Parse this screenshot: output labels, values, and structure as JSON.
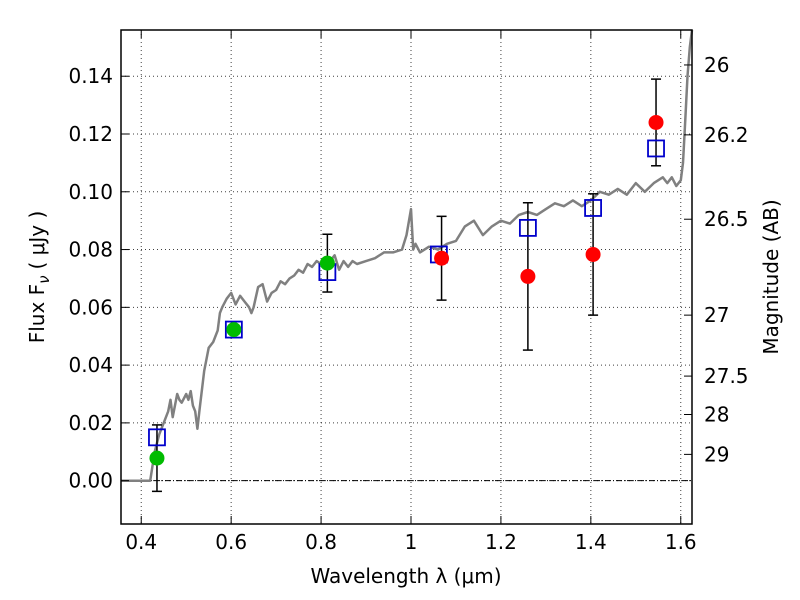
{
  "chart_data": {
    "type": "scatter",
    "xlabel": "Wavelength  λ (μm)",
    "ylabel": "Flux  F",
    "ylabel_sub": "ν",
    "ylabel_unit": "( μJy )",
    "y2label": "Magnitude (AB)",
    "xlim": [
      0.355,
      1.625
    ],
    "ylim": [
      -0.015,
      0.156
    ],
    "grid": true,
    "x_ticks": [
      {
        "value": 0.4,
        "label": "0.4"
      },
      {
        "value": 0.6,
        "label": "0.6"
      },
      {
        "value": 0.8,
        "label": "0.8"
      },
      {
        "value": 1.0,
        "label": "1"
      },
      {
        "value": 1.2,
        "label": "1.2"
      },
      {
        "value": 1.4,
        "label": "1.4"
      },
      {
        "value": 1.6,
        "label": "1.6"
      }
    ],
    "y_ticks": [
      {
        "value": 0.0,
        "label": "0.00"
      },
      {
        "value": 0.02,
        "label": "0.02"
      },
      {
        "value": 0.04,
        "label": "0.04"
      },
      {
        "value": 0.06,
        "label": "0.06"
      },
      {
        "value": 0.08,
        "label": "0.08"
      },
      {
        "value": 0.1,
        "label": "0.10"
      },
      {
        "value": 0.12,
        "label": "0.12"
      },
      {
        "value": 0.14,
        "label": "0.14"
      }
    ],
    "y2_ticks": [
      {
        "flux": 0.1439,
        "label": "26"
      },
      {
        "flux": 0.1197,
        "label": "26.2"
      },
      {
        "flux": 0.0905,
        "label": "26.5"
      },
      {
        "flux": 0.0573,
        "label": "27"
      },
      {
        "flux": 0.0362,
        "label": "27.5"
      },
      {
        "flux": 0.0229,
        "label": "28"
      },
      {
        "flux": 0.0091,
        "label": "29"
      }
    ],
    "zero_line": 0.0,
    "model_spectrum": {
      "color": "#808080",
      "x": [
        0.355,
        0.37,
        0.385,
        0.4,
        0.41,
        0.42,
        0.43,
        0.44,
        0.45,
        0.46,
        0.465,
        0.47,
        0.48,
        0.485,
        0.49,
        0.5,
        0.505,
        0.51,
        0.515,
        0.52,
        0.525,
        0.53,
        0.54,
        0.55,
        0.56,
        0.57,
        0.575,
        0.58,
        0.59,
        0.6,
        0.61,
        0.62,
        0.63,
        0.64,
        0.645,
        0.65,
        0.66,
        0.67,
        0.68,
        0.69,
        0.7,
        0.71,
        0.72,
        0.73,
        0.74,
        0.75,
        0.76,
        0.77,
        0.78,
        0.79,
        0.8,
        0.81,
        0.82,
        0.83,
        0.84,
        0.85,
        0.86,
        0.87,
        0.88,
        0.9,
        0.92,
        0.94,
        0.96,
        0.98,
        0.99,
        1.0,
        1.005,
        1.01,
        1.02,
        1.04,
        1.06,
        1.08,
        1.1,
        1.12,
        1.14,
        1.16,
        1.18,
        1.2,
        1.22,
        1.24,
        1.26,
        1.28,
        1.3,
        1.32,
        1.34,
        1.36,
        1.38,
        1.4,
        1.42,
        1.44,
        1.46,
        1.48,
        1.5,
        1.52,
        1.54,
        1.56,
        1.57,
        1.58,
        1.59,
        1.6,
        1.605,
        1.61,
        1.615,
        1.62,
        1.625
      ],
      "y": [
        0.0,
        0.0,
        0.0,
        0.0,
        0.0,
        0.0,
        0.01,
        0.016,
        0.02,
        0.024,
        0.028,
        0.022,
        0.03,
        0.028,
        0.027,
        0.03,
        0.028,
        0.031,
        0.026,
        0.024,
        0.018,
        0.025,
        0.038,
        0.046,
        0.048,
        0.052,
        0.058,
        0.06,
        0.063,
        0.065,
        0.061,
        0.064,
        0.062,
        0.06,
        0.058,
        0.06,
        0.067,
        0.068,
        0.062,
        0.065,
        0.066,
        0.069,
        0.068,
        0.07,
        0.071,
        0.073,
        0.072,
        0.075,
        0.074,
        0.076,
        0.075,
        0.077,
        0.076,
        0.078,
        0.073,
        0.076,
        0.074,
        0.076,
        0.075,
        0.076,
        0.077,
        0.079,
        0.079,
        0.08,
        0.085,
        0.094,
        0.08,
        0.082,
        0.079,
        0.081,
        0.08,
        0.082,
        0.083,
        0.088,
        0.09,
        0.085,
        0.088,
        0.09,
        0.089,
        0.092,
        0.093,
        0.092,
        0.094,
        0.096,
        0.095,
        0.097,
        0.095,
        0.097,
        0.1,
        0.099,
        0.101,
        0.099,
        0.103,
        0.1,
        0.103,
        0.105,
        0.103,
        0.105,
        0.102,
        0.104,
        0.11,
        0.125,
        0.14,
        0.15,
        0.156
      ]
    },
    "model_photometry": {
      "marker": "open-square",
      "color": "#0000cc",
      "points": [
        {
          "x": 0.435,
          "y": 0.015
        },
        {
          "x": 0.606,
          "y": 0.0523
        },
        {
          "x": 0.814,
          "y": 0.0722
        },
        {
          "x": 1.062,
          "y": 0.0783
        },
        {
          "x": 1.26,
          "y": 0.0875
        },
        {
          "x": 1.405,
          "y": 0.0944
        },
        {
          "x": 1.545,
          "y": 0.115
        }
      ]
    },
    "series": [
      {
        "marker": "filled-circle",
        "color": "#00bb00",
        "points": [
          {
            "x": 0.435,
            "y": 0.0078,
            "err": 0.0115
          },
          {
            "x": 0.606,
            "y": 0.0523,
            "err": 0
          },
          {
            "x": 0.814,
            "y": 0.0753,
            "err": 0.01
          }
        ]
      },
      {
        "marker": "filled-circle",
        "color": "#ff0000",
        "points": [
          {
            "x": 1.068,
            "y": 0.077,
            "err": 0.0145
          },
          {
            "x": 1.26,
            "y": 0.0707,
            "err": 0.0255
          },
          {
            "x": 1.405,
            "y": 0.0783,
            "err": 0.021
          },
          {
            "x": 1.545,
            "y": 0.124,
            "err": 0.015
          }
        ]
      }
    ]
  }
}
